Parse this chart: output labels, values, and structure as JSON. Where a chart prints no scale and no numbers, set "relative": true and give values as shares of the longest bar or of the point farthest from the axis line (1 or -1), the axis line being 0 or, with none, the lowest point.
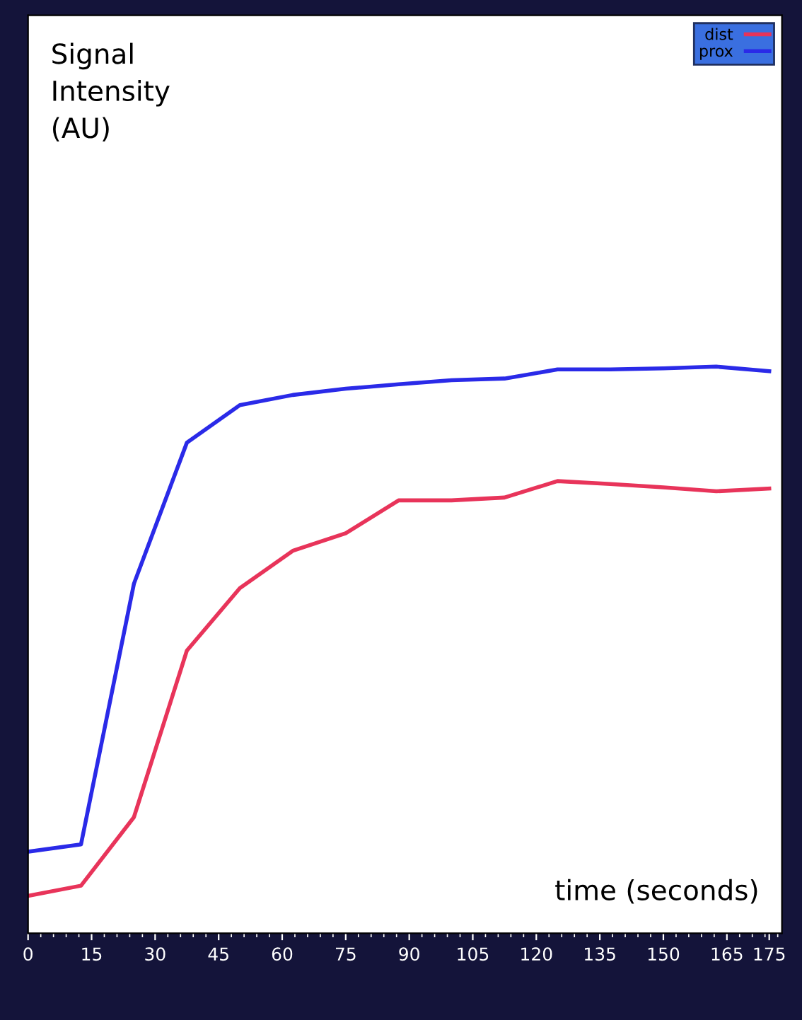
{
  "chart_data": {
    "type": "line",
    "annotations": [
      "Signal\nIntensity\n(AU)"
    ],
    "xlabel": "time (seconds)",
    "relative": true,
    "x": [
      0,
      12.5,
      25,
      37.5,
      50,
      62.5,
      75,
      87.5,
      100,
      112.5,
      125,
      137.5,
      150,
      162.5,
      175
    ],
    "xlim": [
      0,
      178
    ],
    "xticks": [
      0,
      15,
      30,
      45,
      60,
      75,
      90,
      105,
      120,
      135,
      150,
      165,
      175
    ],
    "tick_labels": "x",
    "legend": "top right",
    "grid": false,
    "marker": "none",
    "line_style": "solid",
    "series": [
      {
        "name": "dist",
        "color": "#e8345a",
        "values": [
          0.066,
          0.084,
          0.205,
          0.499,
          0.609,
          0.675,
          0.706,
          0.764,
          0.764,
          0.769,
          0.798,
          0.793,
          0.787,
          0.78,
          0.785
        ]
      },
      {
        "name": "prox",
        "color": "#2a2ae8",
        "values": [
          0.144,
          0.157,
          0.617,
          0.866,
          0.932,
          0.95,
          0.961,
          0.969,
          0.976,
          0.979,
          0.995,
          0.995,
          0.997,
          1,
          0.992
        ]
      }
    ]
  }
}
